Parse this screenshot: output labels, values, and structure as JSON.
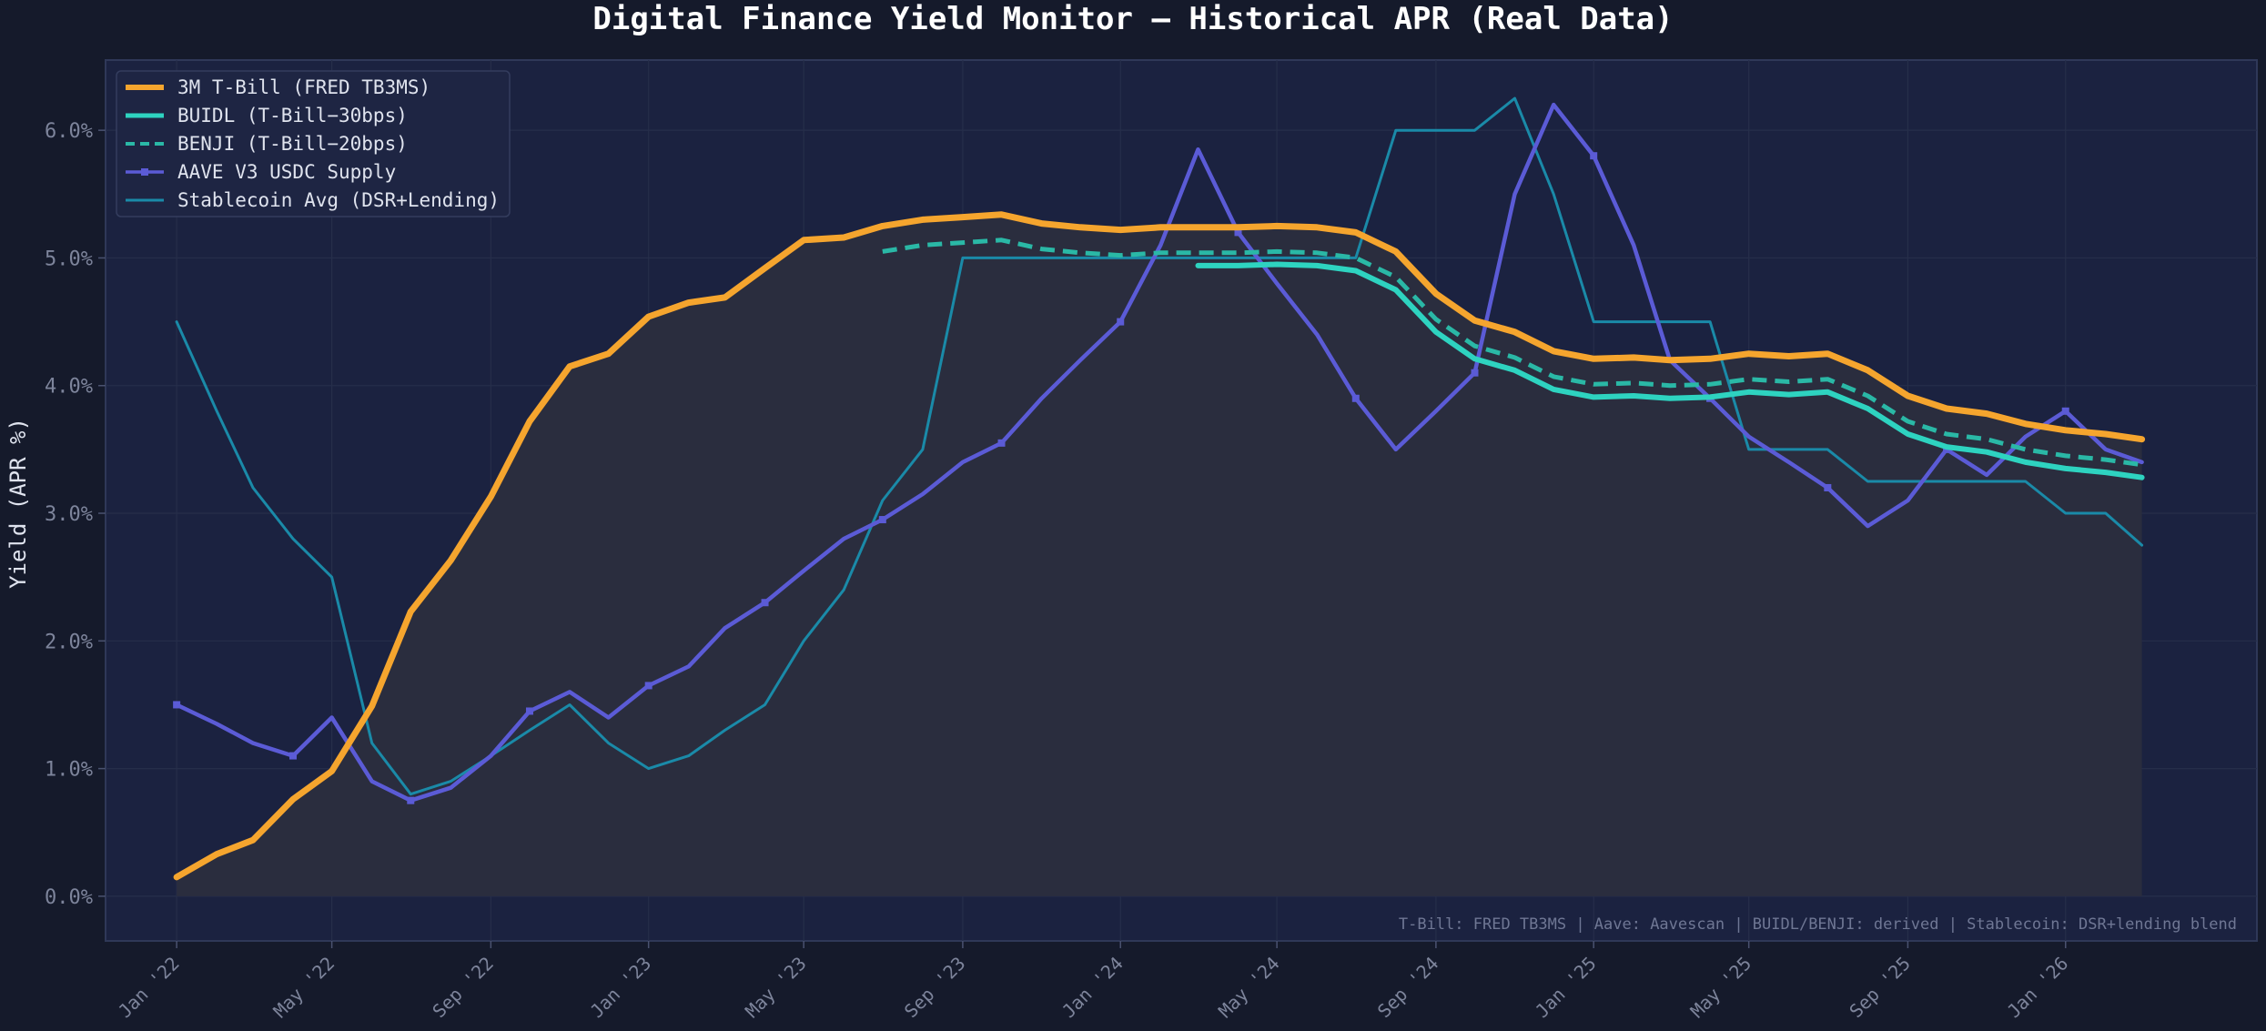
{
  "chart_data": {
    "type": "line",
    "title": "Digital Finance Yield Monitor — Historical APR (Real Data)",
    "xlabel": "",
    "ylabel": "Yield (APR %)",
    "ylim": [
      -0.35,
      6.55
    ],
    "yticks": [
      0,
      1,
      2,
      3,
      4,
      5,
      6
    ],
    "ytick_labels": [
      "0.0%",
      "1.0%",
      "2.0%",
      "3.0%",
      "4.0%",
      "5.0%",
      "6.0%"
    ],
    "xlim": [
      "2021-11-07",
      "2026-05-29"
    ],
    "xticks": [
      "2022-01-01",
      "2022-05-01",
      "2022-09-01",
      "2023-01-01",
      "2023-05-01",
      "2023-09-01",
      "2024-01-01",
      "2024-05-01",
      "2024-09-01",
      "2025-01-01",
      "2025-05-01",
      "2025-09-01",
      "2026-01-01"
    ],
    "xtick_labels": [
      "Jan '22",
      "May '22",
      "Sep '22",
      "Jan '23",
      "May '23",
      "Sep '23",
      "Jan '24",
      "May '24",
      "Sep '24",
      "Jan '25",
      "May '25",
      "Sep '25",
      "Jan '26"
    ],
    "grid": true,
    "legend_position": "top-left",
    "footnote": "T-Bill: FRED TB3MS | Aave: Aavescan | BUIDL/BENJI: derived | Stablecoin: DSR+lending blend",
    "series": [
      {
        "name": "3M T-Bill (FRED TB3MS)",
        "color": "#f5a52e",
        "style": "solid-thick-filled",
        "points": [
          [
            "2022-01-01",
            0.15
          ],
          [
            "2022-02-01",
            0.33
          ],
          [
            "2022-03-01",
            0.44
          ],
          [
            "2022-04-01",
            0.76
          ],
          [
            "2022-05-01",
            0.98
          ],
          [
            "2022-06-01",
            1.49
          ],
          [
            "2022-07-01",
            2.23
          ],
          [
            "2022-08-01",
            2.63
          ],
          [
            "2022-09-01",
            3.13
          ],
          [
            "2022-10-01",
            3.72
          ],
          [
            "2022-11-01",
            4.15
          ],
          [
            "2022-12-01",
            4.25
          ],
          [
            "2023-01-01",
            4.54
          ],
          [
            "2023-02-01",
            4.65
          ],
          [
            "2023-03-01",
            4.69
          ],
          [
            "2023-04-01",
            4.92
          ],
          [
            "2023-05-01",
            5.14
          ],
          [
            "2023-06-01",
            5.16
          ],
          [
            "2023-07-01",
            5.25
          ],
          [
            "2023-08-01",
            5.3
          ],
          [
            "2023-09-01",
            5.32
          ],
          [
            "2023-10-01",
            5.34
          ],
          [
            "2023-11-01",
            5.27
          ],
          [
            "2023-12-01",
            5.24
          ],
          [
            "2024-01-01",
            5.22
          ],
          [
            "2024-02-01",
            5.24
          ],
          [
            "2024-03-01",
            5.24
          ],
          [
            "2024-04-01",
            5.24
          ],
          [
            "2024-05-01",
            5.25
          ],
          [
            "2024-06-01",
            5.24
          ],
          [
            "2024-07-01",
            5.2
          ],
          [
            "2024-08-01",
            5.05
          ],
          [
            "2024-09-01",
            4.72
          ],
          [
            "2024-10-01",
            4.51
          ],
          [
            "2024-11-01",
            4.42
          ],
          [
            "2024-12-01",
            4.27
          ],
          [
            "2025-01-01",
            4.21
          ],
          [
            "2025-02-01",
            4.22
          ],
          [
            "2025-03-01",
            4.2
          ],
          [
            "2025-04-01",
            4.21
          ],
          [
            "2025-05-01",
            4.25
          ],
          [
            "2025-06-01",
            4.23
          ],
          [
            "2025-07-01",
            4.25
          ],
          [
            "2025-08-01",
            4.12
          ],
          [
            "2025-09-01",
            3.92
          ],
          [
            "2025-10-01",
            3.82
          ],
          [
            "2025-11-01",
            3.78
          ],
          [
            "2025-12-01",
            3.7
          ],
          [
            "2026-01-01",
            3.65
          ],
          [
            "2026-02-01",
            3.62
          ],
          [
            "2026-03-01",
            3.58
          ]
        ]
      },
      {
        "name": "BUIDL (T-Bill−30bps)",
        "color": "#2ed3c0",
        "style": "solid",
        "points": [
          [
            "2024-03-01",
            4.94
          ],
          [
            "2024-04-01",
            4.94
          ],
          [
            "2024-05-01",
            4.95
          ],
          [
            "2024-06-01",
            4.94
          ],
          [
            "2024-07-01",
            4.9
          ],
          [
            "2024-08-01",
            4.75
          ],
          [
            "2024-09-01",
            4.42
          ],
          [
            "2024-10-01",
            4.21
          ],
          [
            "2024-11-01",
            4.12
          ],
          [
            "2024-12-01",
            3.97
          ],
          [
            "2025-01-01",
            3.91
          ],
          [
            "2025-02-01",
            3.92
          ],
          [
            "2025-03-01",
            3.9
          ],
          [
            "2025-04-01",
            3.91
          ],
          [
            "2025-05-01",
            3.95
          ],
          [
            "2025-06-01",
            3.93
          ],
          [
            "2025-07-01",
            3.95
          ],
          [
            "2025-08-01",
            3.82
          ],
          [
            "2025-09-01",
            3.62
          ],
          [
            "2025-10-01",
            3.52
          ],
          [
            "2025-11-01",
            3.48
          ],
          [
            "2025-12-01",
            3.4
          ],
          [
            "2026-01-01",
            3.35
          ],
          [
            "2026-02-01",
            3.32
          ],
          [
            "2026-03-01",
            3.28
          ]
        ]
      },
      {
        "name": "BENJI (T-Bill−20bps)",
        "color": "#2ab8a6",
        "style": "dashed",
        "points": [
          [
            "2023-07-01",
            5.05
          ],
          [
            "2023-08-01",
            5.1
          ],
          [
            "2023-09-01",
            5.12
          ],
          [
            "2023-10-01",
            5.14
          ],
          [
            "2023-11-01",
            5.07
          ],
          [
            "2023-12-01",
            5.04
          ],
          [
            "2024-01-01",
            5.02
          ],
          [
            "2024-02-01",
            5.04
          ],
          [
            "2024-03-01",
            5.04
          ],
          [
            "2024-04-01",
            5.04
          ],
          [
            "2024-05-01",
            5.05
          ],
          [
            "2024-06-01",
            5.04
          ],
          [
            "2024-07-01",
            5.0
          ],
          [
            "2024-08-01",
            4.85
          ],
          [
            "2024-09-01",
            4.52
          ],
          [
            "2024-10-01",
            4.31
          ],
          [
            "2024-11-01",
            4.22
          ],
          [
            "2024-12-01",
            4.07
          ],
          [
            "2025-01-01",
            4.01
          ],
          [
            "2025-02-01",
            4.02
          ],
          [
            "2025-03-01",
            4.0
          ],
          [
            "2025-04-01",
            4.01
          ],
          [
            "2025-05-01",
            4.05
          ],
          [
            "2025-06-01",
            4.03
          ],
          [
            "2025-07-01",
            4.05
          ],
          [
            "2025-08-01",
            3.92
          ],
          [
            "2025-09-01",
            3.72
          ],
          [
            "2025-10-01",
            3.62
          ],
          [
            "2025-11-01",
            3.58
          ],
          [
            "2025-12-01",
            3.5
          ],
          [
            "2026-01-01",
            3.45
          ],
          [
            "2026-02-01",
            3.42
          ],
          [
            "2026-03-01",
            3.38
          ]
        ]
      },
      {
        "name": "AAVE V3 USDC Supply",
        "color": "#5b5bd6",
        "style": "solid-markers",
        "marker_every": 3,
        "points": [
          [
            "2022-01-01",
            1.5
          ],
          [
            "2022-02-01",
            1.35
          ],
          [
            "2022-03-01",
            1.2
          ],
          [
            "2022-04-01",
            1.1
          ],
          [
            "2022-05-01",
            1.4
          ],
          [
            "2022-06-01",
            0.9
          ],
          [
            "2022-07-01",
            0.75
          ],
          [
            "2022-08-01",
            0.85
          ],
          [
            "2022-09-01",
            1.1
          ],
          [
            "2022-10-01",
            1.45
          ],
          [
            "2022-11-01",
            1.6
          ],
          [
            "2022-12-01",
            1.4
          ],
          [
            "2023-01-01",
            1.65
          ],
          [
            "2023-02-01",
            1.8
          ],
          [
            "2023-03-01",
            2.1
          ],
          [
            "2023-04-01",
            2.3
          ],
          [
            "2023-05-01",
            2.55
          ],
          [
            "2023-06-01",
            2.8
          ],
          [
            "2023-07-01",
            2.95
          ],
          [
            "2023-08-01",
            3.15
          ],
          [
            "2023-09-01",
            3.4
          ],
          [
            "2023-10-01",
            3.55
          ],
          [
            "2023-11-01",
            3.9
          ],
          [
            "2023-12-01",
            4.2
          ],
          [
            "2024-01-01",
            4.5
          ],
          [
            "2024-02-01",
            5.1
          ],
          [
            "2024-03-01",
            5.85
          ],
          [
            "2024-04-01",
            5.2
          ],
          [
            "2024-05-01",
            4.8
          ],
          [
            "2024-06-01",
            4.4
          ],
          [
            "2024-07-01",
            3.9
          ],
          [
            "2024-08-01",
            3.5
          ],
          [
            "2024-09-01",
            3.8
          ],
          [
            "2024-10-01",
            4.1
          ],
          [
            "2024-11-01",
            5.5
          ],
          [
            "2024-12-01",
            6.2
          ],
          [
            "2025-01-01",
            5.8
          ],
          [
            "2025-02-01",
            5.1
          ],
          [
            "2025-03-01",
            4.2
          ],
          [
            "2025-04-01",
            3.9
          ],
          [
            "2025-05-01",
            3.6
          ],
          [
            "2025-06-01",
            3.4
          ],
          [
            "2025-07-01",
            3.2
          ],
          [
            "2025-08-01",
            2.9
          ],
          [
            "2025-09-01",
            3.1
          ],
          [
            "2025-10-01",
            3.5
          ],
          [
            "2025-11-01",
            3.3
          ],
          [
            "2025-12-01",
            3.6
          ],
          [
            "2026-01-01",
            3.8
          ],
          [
            "2026-02-01",
            3.5
          ],
          [
            "2026-03-01",
            3.4
          ]
        ]
      },
      {
        "name": "Stablecoin Avg (DSR+Lending)",
        "color": "#1a8aa8",
        "style": "solid-thin",
        "points": [
          [
            "2022-01-01",
            4.5
          ],
          [
            "2022-02-01",
            3.8
          ],
          [
            "2022-03-01",
            3.2
          ],
          [
            "2022-04-01",
            2.8
          ],
          [
            "2022-05-01",
            2.5
          ],
          [
            "2022-06-01",
            1.2
          ],
          [
            "2022-07-01",
            0.8
          ],
          [
            "2022-08-01",
            0.9
          ],
          [
            "2022-09-01",
            1.1
          ],
          [
            "2022-10-01",
            1.3
          ],
          [
            "2022-11-01",
            1.5
          ],
          [
            "2022-12-01",
            1.2
          ],
          [
            "2023-01-01",
            1.0
          ],
          [
            "2023-02-01",
            1.1
          ],
          [
            "2023-03-01",
            1.3
          ],
          [
            "2023-04-01",
            1.5
          ],
          [
            "2023-05-01",
            2.0
          ],
          [
            "2023-06-01",
            2.4
          ],
          [
            "2023-07-01",
            3.1
          ],
          [
            "2023-08-01",
            3.5
          ],
          [
            "2023-09-01",
            5.0
          ],
          [
            "2023-10-01",
            5.0
          ],
          [
            "2023-11-01",
            5.0
          ],
          [
            "2023-12-01",
            5.0
          ],
          [
            "2024-01-01",
            5.0
          ],
          [
            "2024-02-01",
            5.0
          ],
          [
            "2024-03-01",
            5.0
          ],
          [
            "2024-04-01",
            5.0
          ],
          [
            "2024-05-01",
            5.0
          ],
          [
            "2024-06-01",
            5.0
          ],
          [
            "2024-07-01",
            5.0
          ],
          [
            "2024-08-01",
            6.0
          ],
          [
            "2024-09-01",
            6.0
          ],
          [
            "2024-10-01",
            6.0
          ],
          [
            "2024-11-01",
            6.25
          ],
          [
            "2024-12-01",
            5.5
          ],
          [
            "2025-01-01",
            4.5
          ],
          [
            "2025-02-01",
            4.5
          ],
          [
            "2025-03-01",
            4.5
          ],
          [
            "2025-04-01",
            4.5
          ],
          [
            "2025-05-01",
            3.5
          ],
          [
            "2025-06-01",
            3.5
          ],
          [
            "2025-07-01",
            3.5
          ],
          [
            "2025-08-01",
            3.25
          ],
          [
            "2025-09-01",
            3.25
          ],
          [
            "2025-10-01",
            3.25
          ],
          [
            "2025-11-01",
            3.25
          ],
          [
            "2025-12-01",
            3.25
          ],
          [
            "2026-01-01",
            3.0
          ],
          [
            "2026-02-01",
            3.0
          ],
          [
            "2026-03-01",
            2.75
          ]
        ]
      }
    ]
  },
  "colors": {
    "page_bg": "#151a2b",
    "plot_bg": "#1b2240",
    "grid": "#262e4a",
    "axis_text": "#7d849b",
    "title_text": "#ffffff",
    "legend_text": "#dfe3ee",
    "fill_under_tbill": "#2a2d3e"
  }
}
